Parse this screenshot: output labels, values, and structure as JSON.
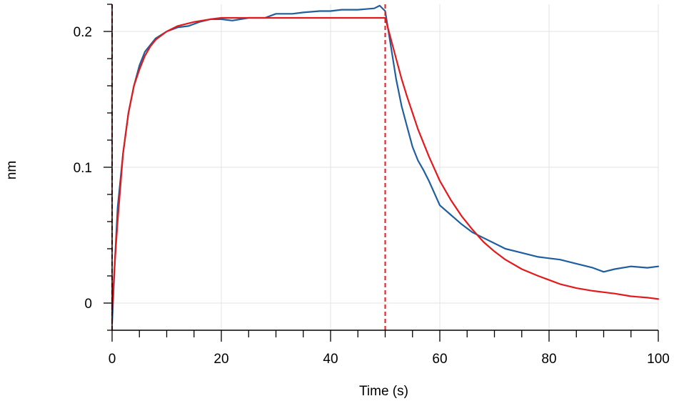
{
  "chart_data": {
    "type": "line",
    "xlabel": "Time (s)",
    "ylabel": "nm",
    "xlim": [
      0,
      100
    ],
    "ylim": [
      -0.02,
      0.22
    ],
    "grid": true,
    "x_ticks": [
      0,
      20,
      40,
      60,
      80,
      100
    ],
    "x_tick_labels": [
      "0",
      "20",
      "40",
      "60",
      "80",
      "100"
    ],
    "y_ticks": [
      0,
      0.1,
      0.2
    ],
    "y_tick_labels": [
      "0",
      "0.1",
      "0.2"
    ],
    "vertical_markers": [
      {
        "x": 0,
        "color": "#e31a1c",
        "style": "dashed"
      },
      {
        "x": 50,
        "color": "#e31a1c",
        "style": "dashed"
      }
    ],
    "series": [
      {
        "color": "#1f5f9e",
        "points": [
          [
            0,
            -0.015
          ],
          [
            0.5,
            0.03
          ],
          [
            1,
            0.07
          ],
          [
            2,
            0.11
          ],
          [
            3,
            0.14
          ],
          [
            4,
            0.16
          ],
          [
            5,
            0.175
          ],
          [
            6,
            0.185
          ],
          [
            8,
            0.195
          ],
          [
            10,
            0.2
          ],
          [
            12,
            0.203
          ],
          [
            14,
            0.204
          ],
          [
            16,
            0.207
          ],
          [
            18,
            0.209
          ],
          [
            20,
            0.209
          ],
          [
            22,
            0.208
          ],
          [
            25,
            0.21
          ],
          [
            28,
            0.21
          ],
          [
            30,
            0.213
          ],
          [
            33,
            0.213
          ],
          [
            35,
            0.214
          ],
          [
            38,
            0.215
          ],
          [
            40,
            0.215
          ],
          [
            42,
            0.216
          ],
          [
            45,
            0.216
          ],
          [
            48,
            0.217
          ],
          [
            49,
            0.219
          ],
          [
            50,
            0.215
          ],
          [
            51,
            0.19
          ],
          [
            52,
            0.165
          ],
          [
            53,
            0.145
          ],
          [
            54,
            0.13
          ],
          [
            55,
            0.115
          ],
          [
            56,
            0.105
          ],
          [
            57,
            0.098
          ],
          [
            58,
            0.09
          ],
          [
            60,
            0.072
          ],
          [
            62,
            0.065
          ],
          [
            64,
            0.058
          ],
          [
            66,
            0.052
          ],
          [
            68,
            0.048
          ],
          [
            70,
            0.044
          ],
          [
            72,
            0.04
          ],
          [
            75,
            0.037
          ],
          [
            78,
            0.034
          ],
          [
            80,
            0.033
          ],
          [
            82,
            0.032
          ],
          [
            85,
            0.029
          ],
          [
            88,
            0.026
          ],
          [
            90,
            0.023
          ],
          [
            92,
            0.025
          ],
          [
            95,
            0.027
          ],
          [
            98,
            0.026
          ],
          [
            100,
            0.027
          ]
        ]
      },
      {
        "color": "#e31a1c",
        "points": [
          [
            0,
            -0.005
          ],
          [
            0.5,
            0.03
          ],
          [
            1,
            0.06
          ],
          [
            2,
            0.11
          ],
          [
            3,
            0.14
          ],
          [
            4,
            0.16
          ],
          [
            5,
            0.172
          ],
          [
            6,
            0.182
          ],
          [
            7,
            0.189
          ],
          [
            8,
            0.194
          ],
          [
            10,
            0.2
          ],
          [
            12,
            0.204
          ],
          [
            15,
            0.207
          ],
          [
            18,
            0.209
          ],
          [
            20,
            0.21
          ],
          [
            25,
            0.21
          ],
          [
            30,
            0.21
          ],
          [
            35,
            0.21
          ],
          [
            40,
            0.21
          ],
          [
            45,
            0.21
          ],
          [
            50,
            0.21
          ],
          [
            51,
            0.195
          ],
          [
            52,
            0.18
          ],
          [
            53,
            0.165
          ],
          [
            54,
            0.152
          ],
          [
            55,
            0.14
          ],
          [
            56,
            0.128
          ],
          [
            58,
            0.108
          ],
          [
            60,
            0.09
          ],
          [
            62,
            0.076
          ],
          [
            64,
            0.064
          ],
          [
            66,
            0.054
          ],
          [
            68,
            0.045
          ],
          [
            70,
            0.038
          ],
          [
            72,
            0.032
          ],
          [
            75,
            0.025
          ],
          [
            78,
            0.02
          ],
          [
            80,
            0.017
          ],
          [
            82,
            0.014
          ],
          [
            85,
            0.011
          ],
          [
            88,
            0.009
          ],
          [
            90,
            0.008
          ],
          [
            92,
            0.007
          ],
          [
            95,
            0.005
          ],
          [
            98,
            0.004
          ],
          [
            100,
            0.003
          ]
        ]
      }
    ]
  }
}
